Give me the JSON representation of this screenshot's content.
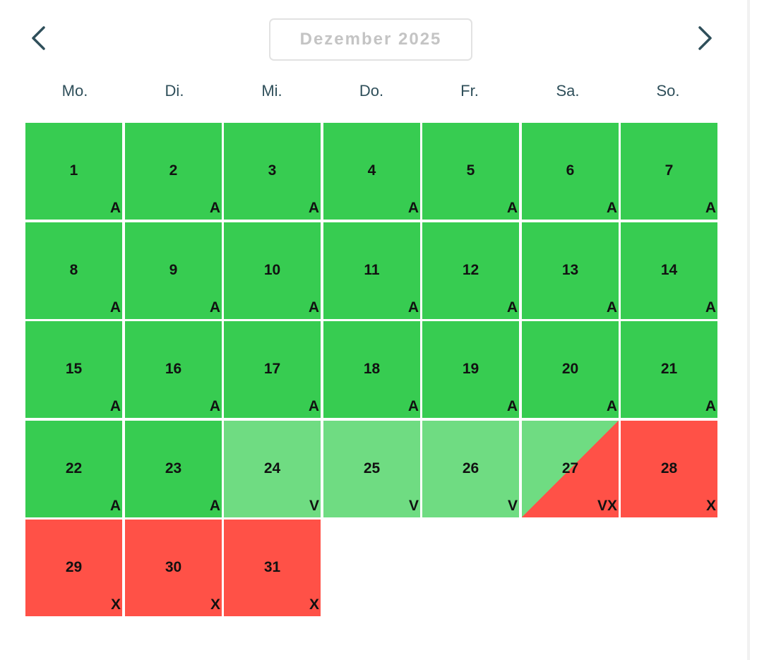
{
  "header": {
    "month_label": "Dezember 2025"
  },
  "weekdays": [
    "Mo.",
    "Di.",
    "Mi.",
    "Do.",
    "Fr.",
    "Sa.",
    "So."
  ],
  "colors": {
    "available": "#37cc51",
    "partial": "#6fdc82",
    "unavailable": "#ff5147",
    "nav_arrow": "#2f4f5a"
  },
  "legend_codes": {
    "A": "available",
    "V": "partial",
    "X": "unavailable",
    "VX": "partial-unavailable"
  },
  "calendar": {
    "first_weekday_index": 0,
    "days": [
      {
        "day": "1",
        "code": "A",
        "status": "available"
      },
      {
        "day": "2",
        "code": "A",
        "status": "available"
      },
      {
        "day": "3",
        "code": "A",
        "status": "available"
      },
      {
        "day": "4",
        "code": "A",
        "status": "available"
      },
      {
        "day": "5",
        "code": "A",
        "status": "available"
      },
      {
        "day": "6",
        "code": "A",
        "status": "available"
      },
      {
        "day": "7",
        "code": "A",
        "status": "available"
      },
      {
        "day": "8",
        "code": "A",
        "status": "available"
      },
      {
        "day": "9",
        "code": "A",
        "status": "available"
      },
      {
        "day": "10",
        "code": "A",
        "status": "available"
      },
      {
        "day": "11",
        "code": "A",
        "status": "available"
      },
      {
        "day": "12",
        "code": "A",
        "status": "available"
      },
      {
        "day": "13",
        "code": "A",
        "status": "available"
      },
      {
        "day": "14",
        "code": "A",
        "status": "available"
      },
      {
        "day": "15",
        "code": "A",
        "status": "available"
      },
      {
        "day": "16",
        "code": "A",
        "status": "available"
      },
      {
        "day": "17",
        "code": "A",
        "status": "available"
      },
      {
        "day": "18",
        "code": "A",
        "status": "available"
      },
      {
        "day": "19",
        "code": "A",
        "status": "available"
      },
      {
        "day": "20",
        "code": "A",
        "status": "available"
      },
      {
        "day": "21",
        "code": "A",
        "status": "available"
      },
      {
        "day": "22",
        "code": "A",
        "status": "available"
      },
      {
        "day": "23",
        "code": "A",
        "status": "available"
      },
      {
        "day": "24",
        "code": "V",
        "status": "partial"
      },
      {
        "day": "25",
        "code": "V",
        "status": "partial"
      },
      {
        "day": "26",
        "code": "V",
        "status": "partial"
      },
      {
        "day": "27",
        "code": "VX",
        "status": "partial-unavailable"
      },
      {
        "day": "28",
        "code": "X",
        "status": "unavailable"
      },
      {
        "day": "29",
        "code": "X",
        "status": "unavailable"
      },
      {
        "day": "30",
        "code": "X",
        "status": "unavailable"
      },
      {
        "day": "31",
        "code": "X",
        "status": "unavailable"
      }
    ]
  }
}
